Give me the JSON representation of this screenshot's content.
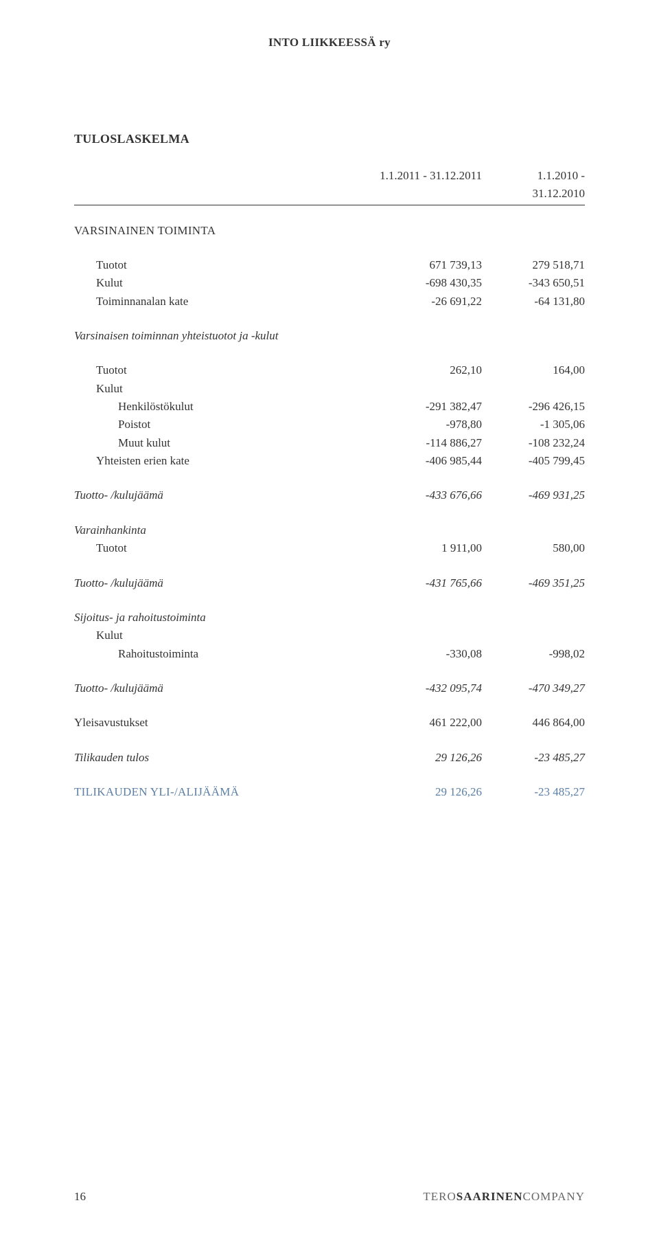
{
  "org_name": "INTO LIIKKEESSÄ ry",
  "section_title": "TULOSLASKELMA",
  "periods": {
    "col1": "1.1.2011 - 31.12.2011",
    "col2": "1.1.2010 - 31.12.2010"
  },
  "labels": {
    "varsinainen_toiminta": "VARSINAINEN TOIMINTA",
    "tuotot": "Tuotot",
    "kulut": "Kulut",
    "toiminnanalan_kate": "Toiminnanalan kate",
    "varsinaisen_toiminnan": "Varsinaisen toiminnan yhteistuotot ja -kulut",
    "henkilostokulut": "Henkilöstökulut",
    "poistot": "Poistot",
    "muut_kulut": "Muut kulut",
    "yhteisten_erien_kate": "Yhteisten erien kate",
    "tuotto_kulujaama": "Tuotto- /kulujäämä",
    "varainhankinta": "Varainhankinta",
    "sijoitus_rahoitus": "Sijoitus- ja rahoitustoiminta",
    "rahoitustoiminta": "Rahoitustoiminta",
    "yleisavustukset": "Yleisavustukset",
    "tilikauden_tulos": "Tilikauden tulos",
    "tilikauden_yli_ali": "TILIKAUDEN YLI-/ALIJÄÄMÄ"
  },
  "values": {
    "vt_tuotot": {
      "c1": "671 739,13",
      "c2": "279 518,71"
    },
    "vt_kulut": {
      "c1": "-698 430,35",
      "c2": "-343 650,51"
    },
    "vt_kate": {
      "c1": "-26 691,22",
      "c2": "-64 131,80"
    },
    "yt_tuotot": {
      "c1": "262,10",
      "c2": "164,00"
    },
    "henkilostokulut": {
      "c1": "-291 382,47",
      "c2": "-296 426,15"
    },
    "poistot": {
      "c1": "-978,80",
      "c2": "-1 305,06"
    },
    "muut_kulut": {
      "c1": "-114 886,27",
      "c2": "-108 232,24"
    },
    "yhteisten_kate": {
      "c1": "-406 985,44",
      "c2": "-405 799,45"
    },
    "tk1": {
      "c1": "-433 676,66",
      "c2": "-469 931,25"
    },
    "vh_tuotot": {
      "c1": "1 911,00",
      "c2": "580,00"
    },
    "tk2": {
      "c1": "-431 765,66",
      "c2": "-469 351,25"
    },
    "rahoitustoiminta": {
      "c1": "-330,08",
      "c2": "-998,02"
    },
    "tk3": {
      "c1": "-432 095,74",
      "c2": "-470 349,27"
    },
    "yleisavustukset": {
      "c1": "461 222,00",
      "c2": "446 864,00"
    },
    "tilikauden_tulos": {
      "c1": "29 126,26",
      "c2": "-23 485,27"
    },
    "tilikauden_ya": {
      "c1": "29 126,26",
      "c2": "-23 485,27"
    }
  },
  "footer": {
    "page_no": "16",
    "company_light1": "TERO",
    "company_bold": "SAARINEN",
    "company_light2": "COMPANY"
  },
  "colors": {
    "text": "#333333",
    "blue": "#5b7fa6",
    "muted": "#666666",
    "background": "#ffffff"
  }
}
